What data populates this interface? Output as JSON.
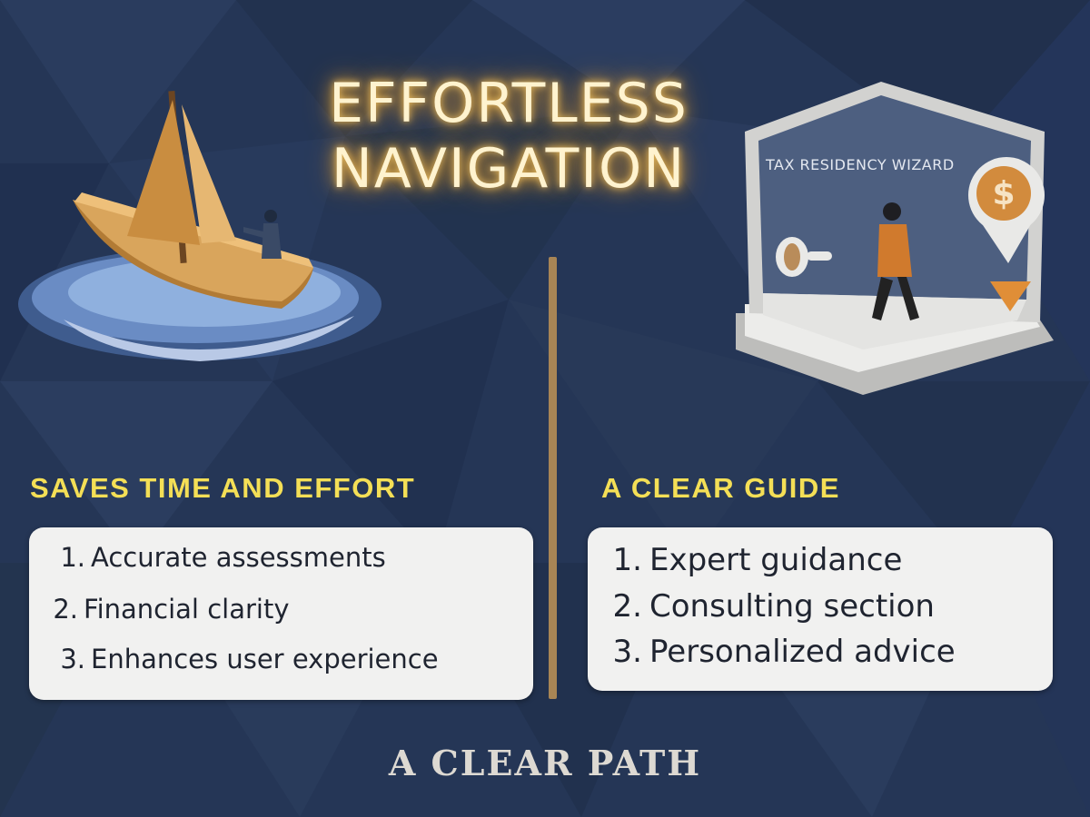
{
  "title": {
    "line1": "EFFORTLESS",
    "line2": "NAVIGATION"
  },
  "illustrations": {
    "left": "sailboat-icon",
    "right_label": "TAX RESIDENCY WIZARD",
    "right_icons": [
      "person-icon",
      "dollar-pin-icon",
      "info-marker-icon"
    ]
  },
  "left_section": {
    "heading": "SAVES TIME AND EFFORT",
    "items": [
      {
        "num": "1.",
        "text": "Accurate assessments"
      },
      {
        "num": "2.",
        "text": "Financial clarity"
      },
      {
        "num": "3.",
        "text": "Enhances user experience"
      }
    ]
  },
  "right_section": {
    "heading": "A CLEAR GUIDE",
    "items": [
      {
        "num": "1.",
        "text": "Expert guidance"
      },
      {
        "num": "2.",
        "text": "Consulting section"
      },
      {
        "num": "3.",
        "text": "Personalized advice"
      }
    ]
  },
  "footer": "A CLEAR PATH",
  "colors": {
    "background": "#253656",
    "title_glow": "#f0c060",
    "heading": "#f4df56",
    "divider": "#a88555",
    "card": "#f1f1f0"
  }
}
